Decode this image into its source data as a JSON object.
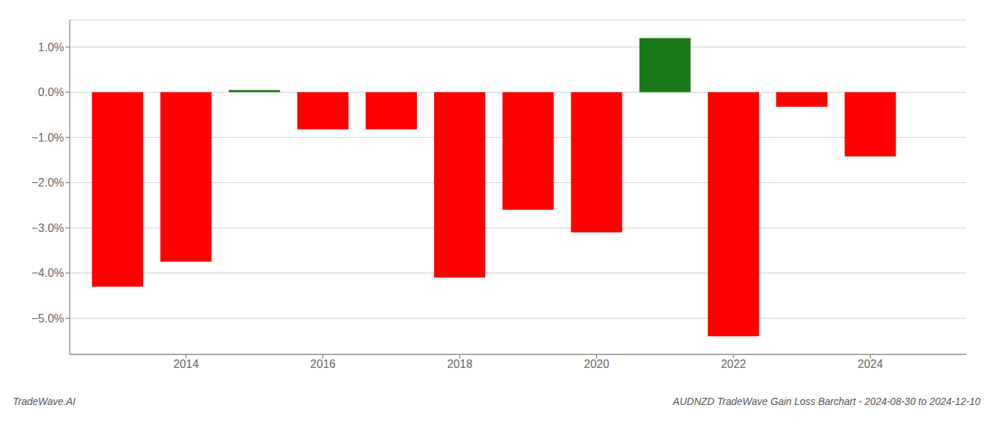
{
  "chart_data": {
    "type": "bar",
    "title": "AUDNZD TradeWave Gain Loss Barchart - 2024-08-30 to 2024-12-10",
    "annotations": [
      "TradeWave.AI"
    ],
    "x": [
      2013,
      2014,
      2015,
      2016,
      2017,
      2018,
      2019,
      2020,
      2021,
      2022,
      2023,
      2024
    ],
    "values": [
      -4.3,
      -3.75,
      0.05,
      -0.82,
      -0.82,
      -4.1,
      -2.6,
      -3.1,
      1.2,
      -5.4,
      -0.32,
      -1.42
    ],
    "colors": [
      "#ff0000",
      "#ff0000",
      "#1a7a1a",
      "#ff0000",
      "#ff0000",
      "#ff0000",
      "#ff0000",
      "#ff0000",
      "#1a7a1a",
      "#ff0000",
      "#ff0000",
      "#ff0000"
    ],
    "xlim": [
      2012.3,
      2025.4
    ],
    "xticks": [
      2014,
      2016,
      2018,
      2020,
      2022,
      2024
    ],
    "ylim": [
      -5.8,
      1.6
    ],
    "yticks": [
      {
        "value": -5,
        "label": "−5.0%"
      },
      {
        "value": -4,
        "label": "−4.0%"
      },
      {
        "value": -3,
        "label": "−3.0%"
      },
      {
        "value": -2,
        "label": "−2.0%"
      },
      {
        "value": -1,
        "label": "−1.0%"
      },
      {
        "value": 0,
        "label": "0.0%"
      },
      {
        "value": 1,
        "label": "1.0%"
      }
    ],
    "grid": true
  }
}
